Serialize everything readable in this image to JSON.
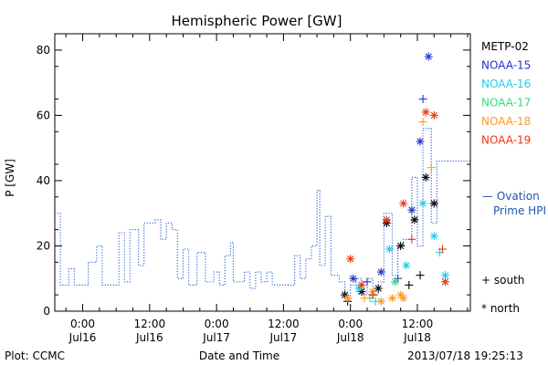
{
  "footer": {
    "plot_credit": "Plot: CCMC",
    "timestamp": "2013/07/18 19:25:13"
  },
  "chart_data": {
    "type": "scatter",
    "title": "Hemispheric Power [GW]",
    "xlabel": "Date and Time",
    "ylabel": "P [GW]",
    "ylim": [
      0,
      85
    ],
    "xlim": [
      "2013-07-15T19:00",
      "2013-07-18T21:30"
    ],
    "yticks": [
      0,
      20,
      40,
      60,
      80
    ],
    "xtick_labels": [
      {
        "time": "2013-07-16T00:00",
        "line1": "0:00",
        "line2": "Jul16"
      },
      {
        "time": "2013-07-16T12:00",
        "line1": "12:00",
        "line2": "Jul16"
      },
      {
        "time": "2013-07-17T00:00",
        "line1": "0:00",
        "line2": "Jul17"
      },
      {
        "time": "2013-07-17T12:00",
        "line1": "12:00",
        "line2": "Jul17"
      },
      {
        "time": "2013-07-18T00:00",
        "line1": "0:00",
        "line2": "Jul18"
      },
      {
        "time": "2013-07-18T12:00",
        "line1": "12:00",
        "line2": "Jul18"
      }
    ],
    "grid": false,
    "legend": {
      "placement": "right",
      "satellites": [
        "METP-02",
        "NOAA-15",
        "NOAA-16",
        "NOAA-17",
        "NOAA-18",
        "NOAA-19"
      ],
      "ovation_line1": "— Ovation",
      "ovation_line2": "Prime HPI",
      "south_label": "+ south",
      "north_label": "* north"
    },
    "colors": {
      "METP-02": "#000000",
      "NOAA-15": "#2233cc",
      "NOAA-16": "#22ccee",
      "NOAA-17": "#33dd77",
      "NOAA-18": "#ff9922",
      "NOAA-19": "#ee3311",
      "ovation": "#3366dd",
      "ovation_label": "#2255aa"
    },
    "ovation_series": {
      "name": "Ovation Prime HPI",
      "style": "dotted-step",
      "points": [
        [
          "2013-07-15T19:00",
          30
        ],
        [
          "2013-07-15T20:00",
          8
        ],
        [
          "2013-07-15T21:30",
          13
        ],
        [
          "2013-07-15T22:30",
          8
        ],
        [
          "2013-07-16T01:00",
          15
        ],
        [
          "2013-07-16T02:30",
          20
        ],
        [
          "2013-07-16T03:30",
          8
        ],
        [
          "2013-07-16T06:30",
          24
        ],
        [
          "2013-07-16T07:30",
          9
        ],
        [
          "2013-07-16T08:30",
          25
        ],
        [
          "2013-07-16T10:00",
          14
        ],
        [
          "2013-07-16T11:00",
          27
        ],
        [
          "2013-07-16T13:00",
          28
        ],
        [
          "2013-07-16T14:00",
          22
        ],
        [
          "2013-07-16T15:00",
          27
        ],
        [
          "2013-07-16T16:00",
          25
        ],
        [
          "2013-07-16T17:00",
          10
        ],
        [
          "2013-07-16T18:00",
          19
        ],
        [
          "2013-07-16T19:00",
          8
        ],
        [
          "2013-07-16T20:30",
          18
        ],
        [
          "2013-07-16T22:00",
          9
        ],
        [
          "2013-07-16T23:30",
          12
        ],
        [
          "2013-07-17T00:30",
          8
        ],
        [
          "2013-07-17T01:30",
          17
        ],
        [
          "2013-07-17T02:30",
          21
        ],
        [
          "2013-07-17T03:00",
          9
        ],
        [
          "2013-07-17T05:00",
          12
        ],
        [
          "2013-07-17T06:00",
          7
        ],
        [
          "2013-07-17T07:00",
          12
        ],
        [
          "2013-07-17T08:00",
          9
        ],
        [
          "2013-07-17T09:00",
          12
        ],
        [
          "2013-07-17T10:00",
          8
        ],
        [
          "2013-07-17T12:00",
          8
        ],
        [
          "2013-07-17T14:00",
          17
        ],
        [
          "2013-07-17T15:00",
          10
        ],
        [
          "2013-07-17T16:00",
          16
        ],
        [
          "2013-07-17T17:00",
          20
        ],
        [
          "2013-07-17T18:00",
          37
        ],
        [
          "2013-07-17T18:30",
          14
        ],
        [
          "2013-07-17T19:30",
          29
        ],
        [
          "2013-07-17T20:30",
          11
        ],
        [
          "2013-07-17T22:00",
          9
        ],
        [
          "2013-07-17T23:00",
          4
        ],
        [
          "2013-07-18T00:00",
          8
        ],
        [
          "2013-07-18T01:00",
          10
        ],
        [
          "2013-07-18T02:00",
          5
        ],
        [
          "2013-07-18T03:00",
          10
        ],
        [
          "2013-07-18T04:00",
          5
        ],
        [
          "2013-07-18T05:00",
          9
        ],
        [
          "2013-07-18T06:00",
          30
        ],
        [
          "2013-07-18T07:30",
          11
        ],
        [
          "2013-07-18T08:30",
          20
        ],
        [
          "2013-07-18T09:30",
          22
        ],
        [
          "2013-07-18T11:00",
          41
        ],
        [
          "2013-07-18T12:00",
          20
        ],
        [
          "2013-07-18T13:00",
          56
        ],
        [
          "2013-07-18T14:30",
          27
        ],
        [
          "2013-07-18T15:30",
          46
        ],
        [
          "2013-07-18T17:00",
          46
        ]
      ]
    },
    "series": [
      {
        "name": "METP-02",
        "points": [
          {
            "t": "2013-07-17T23:00",
            "v": 5,
            "h": "north"
          },
          {
            "t": "2013-07-17T23:30",
            "v": 3,
            "h": "south"
          },
          {
            "t": "2013-07-18T02:00",
            "v": 6,
            "h": "north"
          },
          {
            "t": "2013-07-18T04:00",
            "v": 5,
            "h": "south"
          },
          {
            "t": "2013-07-18T05:00",
            "v": 7,
            "h": "north"
          },
          {
            "t": "2013-07-18T06:30",
            "v": 27,
            "h": "north"
          },
          {
            "t": "2013-07-18T09:00",
            "v": 20,
            "h": "north"
          },
          {
            "t": "2013-07-18T10:30",
            "v": 8,
            "h": "south"
          },
          {
            "t": "2013-07-18T11:30",
            "v": 28,
            "h": "north"
          },
          {
            "t": "2013-07-18T12:30",
            "v": 11,
            "h": "south"
          },
          {
            "t": "2013-07-18T13:30",
            "v": 41,
            "h": "north"
          },
          {
            "t": "2013-07-18T15:00",
            "v": 33,
            "h": "north"
          }
        ]
      },
      {
        "name": "NOAA-15",
        "points": [
          {
            "t": "2013-07-18T00:30",
            "v": 10,
            "h": "north"
          },
          {
            "t": "2013-07-18T03:00",
            "v": 9,
            "h": "south"
          },
          {
            "t": "2013-07-18T05:30",
            "v": 12,
            "h": "north"
          },
          {
            "t": "2013-07-18T08:30",
            "v": 10,
            "h": "south"
          },
          {
            "t": "2013-07-18T11:00",
            "v": 31,
            "h": "north"
          },
          {
            "t": "2013-07-18T12:30",
            "v": 52,
            "h": "north"
          },
          {
            "t": "2013-07-18T13:00",
            "v": 65,
            "h": "south"
          },
          {
            "t": "2013-07-18T14:00",
            "v": 78,
            "h": "north"
          }
        ]
      },
      {
        "name": "NOAA-16",
        "points": [
          {
            "t": "2013-07-18T01:30",
            "v": 7,
            "h": "north"
          },
          {
            "t": "2013-07-18T04:30",
            "v": 3,
            "h": "south"
          },
          {
            "t": "2013-07-18T07:00",
            "v": 19,
            "h": "north"
          },
          {
            "t": "2013-07-18T10:00",
            "v": 14,
            "h": "north"
          },
          {
            "t": "2013-07-18T13:00",
            "v": 33,
            "h": "north"
          },
          {
            "t": "2013-07-18T15:00",
            "v": 23,
            "h": "north"
          },
          {
            "t": "2013-07-18T16:00",
            "v": 18,
            "h": "south"
          },
          {
            "t": "2013-07-18T17:00",
            "v": 11,
            "h": "north"
          }
        ]
      },
      {
        "name": "NOAA-17",
        "points": [
          {
            "t": "2013-07-18T03:30",
            "v": 4,
            "h": "south"
          },
          {
            "t": "2013-07-18T08:00",
            "v": 9,
            "h": "north"
          }
        ]
      },
      {
        "name": "NOAA-18",
        "points": [
          {
            "t": "2013-07-17T23:30",
            "v": 4,
            "h": "north"
          },
          {
            "t": "2013-07-18T02:30",
            "v": 4,
            "h": "south"
          },
          {
            "t": "2013-07-18T04:00",
            "v": 6,
            "h": "north"
          },
          {
            "t": "2013-07-18T05:30",
            "v": 3,
            "h": "north"
          },
          {
            "t": "2013-07-18T07:30",
            "v": 4,
            "h": "north"
          },
          {
            "t": "2013-07-18T09:00",
            "v": 5,
            "h": "north"
          },
          {
            "t": "2013-07-18T09:30",
            "v": 4,
            "h": "north"
          },
          {
            "t": "2013-07-18T13:00",
            "v": 58,
            "h": "south"
          },
          {
            "t": "2013-07-18T14:30",
            "v": 44,
            "h": "south"
          }
        ]
      },
      {
        "name": "NOAA-19",
        "points": [
          {
            "t": "2013-07-18T00:00",
            "v": 16,
            "h": "north"
          },
          {
            "t": "2013-07-18T02:00",
            "v": 8,
            "h": "north"
          },
          {
            "t": "2013-07-18T04:00",
            "v": 5,
            "h": "south"
          },
          {
            "t": "2013-07-18T06:30",
            "v": 28,
            "h": "north"
          },
          {
            "t": "2013-07-18T09:30",
            "v": 33,
            "h": "north"
          },
          {
            "t": "2013-07-18T11:00",
            "v": 22,
            "h": "south"
          },
          {
            "t": "2013-07-18T13:30",
            "v": 61,
            "h": "north"
          },
          {
            "t": "2013-07-18T15:00",
            "v": 60,
            "h": "north"
          },
          {
            "t": "2013-07-18T16:30",
            "v": 19,
            "h": "south"
          },
          {
            "t": "2013-07-18T17:00",
            "v": 9,
            "h": "north"
          }
        ]
      }
    ]
  }
}
